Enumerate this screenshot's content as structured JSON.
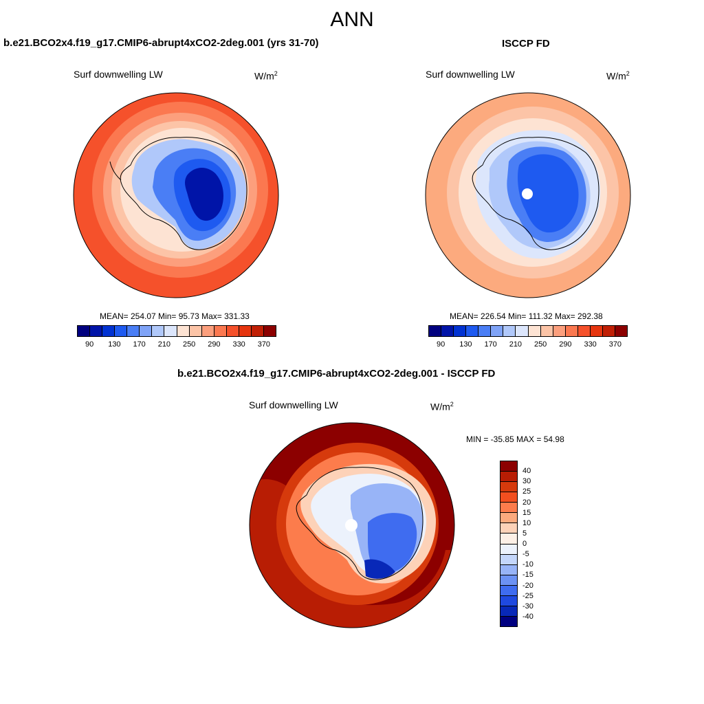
{
  "figure": {
    "title": "ANN"
  },
  "panels": [
    {
      "title": "b.e21.BCO2x4.f19_g17.CMIP6-abrupt4xCO2-2deg.001 (yrs 31-70)",
      "var_label": "Surf downwelling LW",
      "units": "W/m",
      "units_sup": "2",
      "stats_text": "MEAN= 254.07  Min=  95.73  Max= 331.33",
      "stats": {
        "mean": 254.07,
        "min": 95.73,
        "max": 331.33
      },
      "field": {
        "outer": 315,
        "ring": 300,
        "coast": 270,
        "interior": 185,
        "core": 120
      }
    },
    {
      "title": "ISCCP FD",
      "var_label": "Surf downwelling LW",
      "units": "W/m",
      "units_sup": "2",
      "stats_text": "MEAN= 226.54  Min= 111.32  Max= 292.38",
      "stats": {
        "mean": 226.54,
        "min": 111.32,
        "max": 292.38
      },
      "field": {
        "outer": 272,
        "ring": 258,
        "coast": 230,
        "interior": 195,
        "core": 150
      }
    },
    {
      "title": "b.e21.BCO2x4.f19_g17.CMIP6-abrupt4xCO2-2deg.001 - ISCCP FD",
      "var_label": "Surf downwelling LW",
      "units": "W/m",
      "units_sup": "2",
      "stats_text": "MIN = -35.85 MAX =  54.98",
      "stats": {
        "min": -35.85,
        "max": 54.98
      }
    }
  ],
  "colorbar_abs": {
    "colors": [
      "#00007f",
      "#0014a8",
      "#0032d2",
      "#1e5af0",
      "#4a7ef5",
      "#7fa3f7",
      "#b0c8fa",
      "#dce6fc",
      "#fde3d3",
      "#fcc4a7",
      "#fc9f7d",
      "#fb7850",
      "#f5512b",
      "#e6350f",
      "#c01f05",
      "#8c0000"
    ],
    "tick_labels": [
      "90",
      "130",
      "170",
      "210",
      "250",
      "290",
      "330",
      "370"
    ]
  },
  "colorbar_diff": {
    "colors": [
      "#8c0000",
      "#b81d04",
      "#d63a0c",
      "#f24f1f",
      "#fc7c4c",
      "#fcaa7e",
      "#fdd2b8",
      "#fdf0e6",
      "#ecf2fc",
      "#c4d6fa",
      "#98b4f7",
      "#6c92f4",
      "#3f6cf0",
      "#1f49e0",
      "#0828b8",
      "#000080"
    ],
    "tick_labels": [
      "40",
      "30",
      "25",
      "20",
      "15",
      "10",
      "5",
      "0",
      "-5",
      "-10",
      "-15",
      "-20",
      "-25",
      "-30",
      "-40"
    ]
  }
}
